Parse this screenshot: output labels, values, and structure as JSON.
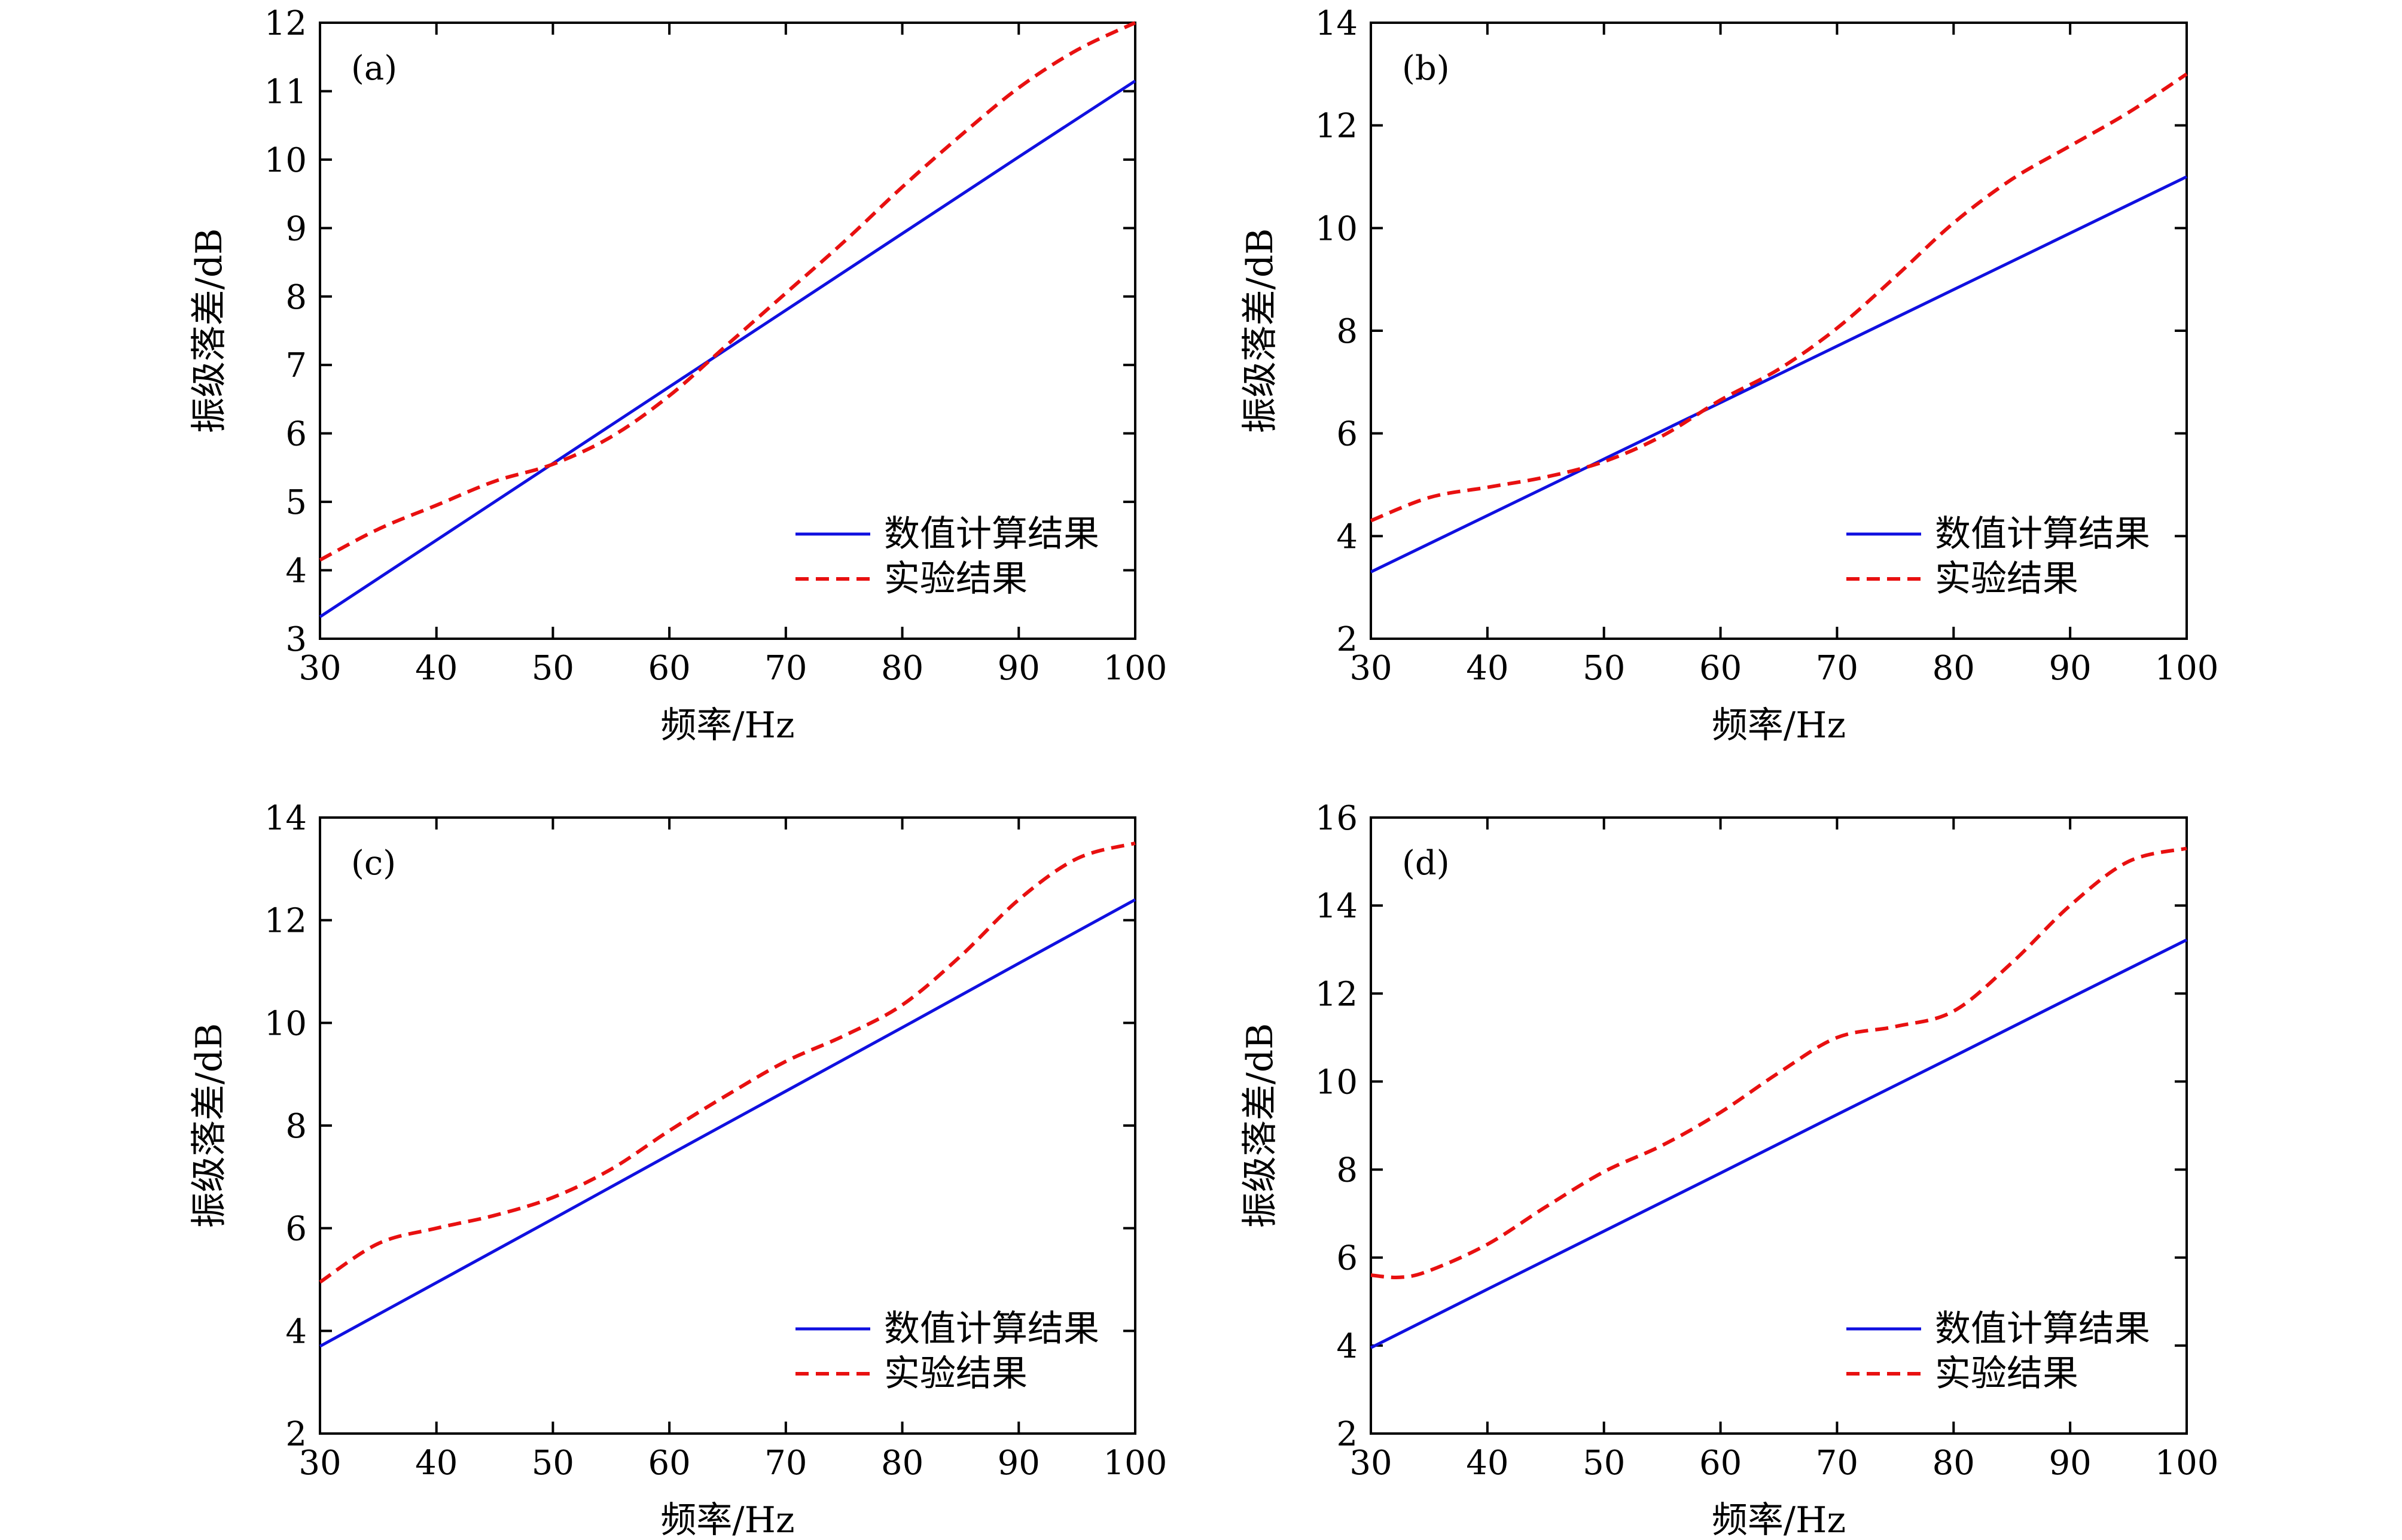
{
  "colors": {
    "numeric": "#1010e0",
    "experiment": "#e81010",
    "axis": "#000000"
  },
  "legend": {
    "series_1": "数值计算结果",
    "series_2": "实验结果"
  },
  "chart_data": [
    {
      "type": "line",
      "panel_label": "(a)",
      "xlabel": "频率/Hz",
      "ylabel": "振级落差/dB",
      "xlim": [
        30,
        100
      ],
      "ylim": [
        3,
        12
      ],
      "xticks": [
        30,
        40,
        50,
        60,
        70,
        80,
        90,
        100
      ],
      "yticks": [
        3,
        4,
        5,
        6,
        7,
        8,
        9,
        10,
        11,
        12
      ],
      "legend_position": "bottom-right",
      "grid": false,
      "series": [
        {
          "name": "数值计算结果",
          "style": "solid",
          "x": [
            30,
            40,
            50,
            60,
            70,
            80,
            90,
            100
          ],
          "y": [
            3.32,
            4.44,
            5.56,
            6.68,
            7.8,
            8.92,
            10.04,
            11.15
          ]
        },
        {
          "name": "实验结果",
          "style": "dashed",
          "x": [
            30,
            35,
            40,
            45,
            50,
            55,
            60,
            65,
            70,
            75,
            80,
            85,
            90,
            95,
            100
          ],
          "y": [
            4.15,
            4.6,
            4.95,
            5.3,
            5.55,
            5.95,
            6.55,
            7.3,
            8.05,
            8.8,
            9.6,
            10.35,
            11.05,
            11.6,
            12.0
          ]
        }
      ]
    },
    {
      "type": "line",
      "panel_label": "(b)",
      "xlabel": "频率/Hz",
      "ylabel": "振级落差/dB",
      "xlim": [
        30,
        100
      ],
      "ylim": [
        2,
        14
      ],
      "xticks": [
        30,
        40,
        50,
        60,
        70,
        80,
        90,
        100
      ],
      "yticks": [
        2,
        4,
        6,
        8,
        10,
        12,
        14
      ],
      "legend_position": "bottom-right",
      "grid": false,
      "series": [
        {
          "name": "数值计算结果",
          "style": "solid",
          "x": [
            30,
            40,
            50,
            60,
            70,
            80,
            90,
            100
          ],
          "y": [
            3.3,
            4.4,
            5.5,
            6.6,
            7.7,
            8.8,
            9.9,
            11.0
          ]
        },
        {
          "name": "实验结果",
          "style": "dashed",
          "x": [
            30,
            35,
            40,
            45,
            50,
            55,
            60,
            65,
            70,
            75,
            80,
            85,
            90,
            95,
            100
          ],
          "y": [
            4.3,
            4.75,
            4.95,
            5.15,
            5.45,
            5.95,
            6.65,
            7.25,
            8.05,
            9.05,
            10.1,
            10.95,
            11.6,
            12.25,
            13.0
          ]
        }
      ]
    },
    {
      "type": "line",
      "panel_label": "(c)",
      "xlabel": "频率/Hz",
      "ylabel": "振级落差/dB",
      "xlim": [
        30,
        100
      ],
      "ylim": [
        2,
        14
      ],
      "xticks": [
        30,
        40,
        50,
        60,
        70,
        80,
        90,
        100
      ],
      "yticks": [
        2,
        4,
        6,
        8,
        10,
        12,
        14
      ],
      "legend_position": "bottom-right",
      "grid": false,
      "series": [
        {
          "name": "数值计算结果",
          "style": "solid",
          "x": [
            30,
            40,
            50,
            60,
            70,
            80,
            90,
            100
          ],
          "y": [
            3.7,
            4.94,
            6.18,
            7.43,
            8.67,
            9.91,
            11.16,
            12.4
          ]
        },
        {
          "name": "实验结果",
          "style": "dashed",
          "x": [
            30,
            35,
            40,
            45,
            50,
            55,
            60,
            65,
            70,
            75,
            80,
            85,
            90,
            95,
            100
          ],
          "y": [
            4.95,
            5.7,
            6.0,
            6.25,
            6.6,
            7.15,
            7.9,
            8.6,
            9.25,
            9.75,
            10.35,
            11.3,
            12.4,
            13.2,
            13.5
          ]
        }
      ]
    },
    {
      "type": "line",
      "panel_label": "(d)",
      "xlabel": "频率/Hz",
      "ylabel": "振级落差/dB",
      "xlim": [
        30,
        100
      ],
      "ylim": [
        2,
        16
      ],
      "xticks": [
        30,
        40,
        50,
        60,
        70,
        80,
        90,
        100
      ],
      "yticks": [
        2,
        4,
        6,
        8,
        10,
        12,
        14,
        16
      ],
      "legend_position": "bottom-right",
      "grid": false,
      "series": [
        {
          "name": "数值计算结果",
          "style": "solid",
          "x": [
            30,
            40,
            50,
            60,
            70,
            80,
            90,
            100
          ],
          "y": [
            3.95,
            5.28,
            6.6,
            7.92,
            9.25,
            10.57,
            11.9,
            13.22
          ]
        },
        {
          "name": "实验结果",
          "style": "dashed",
          "x": [
            30,
            32.5,
            35,
            40,
            45,
            50,
            55,
            60,
            65,
            70,
            75,
            80,
            85,
            90,
            95,
            100
          ],
          "y": [
            5.6,
            5.55,
            5.7,
            6.3,
            7.15,
            7.95,
            8.55,
            9.3,
            10.2,
            11.0,
            11.25,
            11.6,
            12.7,
            14.0,
            15.0,
            15.3
          ]
        }
      ]
    }
  ]
}
